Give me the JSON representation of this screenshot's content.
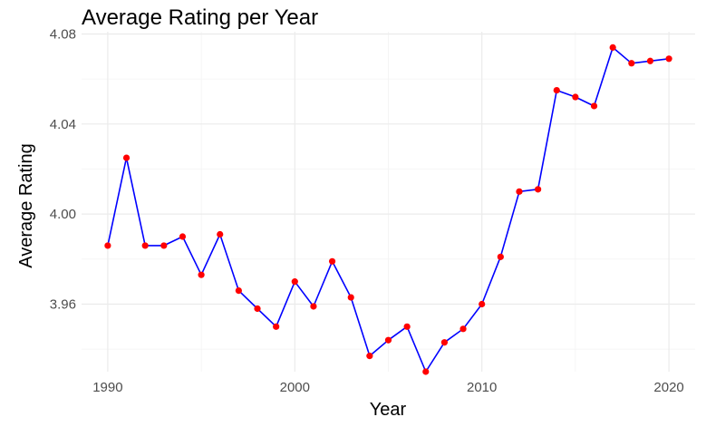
{
  "chart_data": {
    "type": "line",
    "title": "Average Rating per Year",
    "xlabel": "Year",
    "ylabel": "Average Rating",
    "xlim": [
      1988.6,
      2021.4
    ],
    "ylim": [
      3.93,
      4.081
    ],
    "xticks": [
      1990,
      2000,
      2010,
      2020
    ],
    "xtick_labels": [
      "1990",
      "2000",
      "2010",
      "2020"
    ],
    "yticks": [
      3.96,
      4.0,
      4.04,
      4.08
    ],
    "ytick_labels": [
      "3.96",
      "4.00",
      "4.04",
      "4.08"
    ],
    "grid": true,
    "legend": "none",
    "colors": {
      "line": "#0000ff",
      "point": "#ff0000",
      "grid": "#ebebeb",
      "background": "#ffffff"
    },
    "series": [
      {
        "x": [
          1990,
          1991,
          1992,
          1993,
          1994,
          1995,
          1996,
          1997,
          1998,
          1999,
          2000,
          2001,
          2002,
          2003,
          2004,
          2005,
          2006,
          2007,
          2008,
          2009,
          2010,
          2011,
          2012,
          2013,
          2014,
          2015,
          2016,
          2017,
          2018,
          2019,
          2020
        ],
        "y": [
          3.986,
          4.025,
          3.986,
          3.986,
          3.99,
          3.973,
          3.991,
          3.966,
          3.958,
          3.95,
          3.97,
          3.959,
          3.979,
          3.963,
          3.937,
          3.944,
          3.95,
          3.93,
          3.943,
          3.949,
          3.96,
          3.981,
          4.01,
          4.011,
          4.055,
          4.052,
          4.048,
          4.074,
          4.067,
          4.068,
          4.069
        ]
      }
    ]
  }
}
